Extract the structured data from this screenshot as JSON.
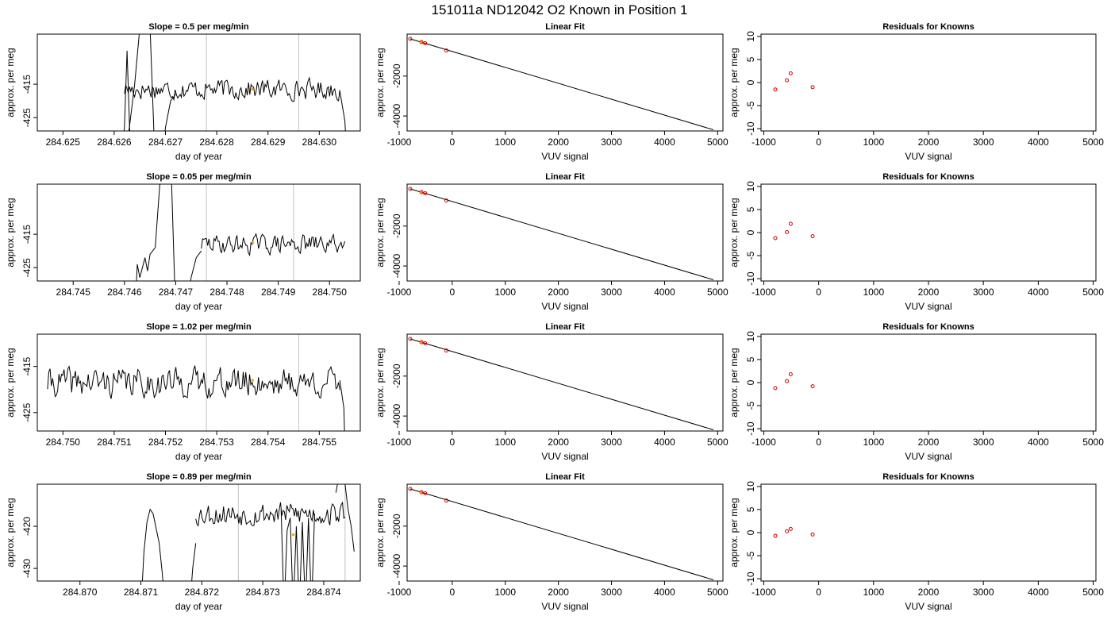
{
  "main_title": "151011a     ND12042   O2 Known in Position  1",
  "chart_data": [
    {
      "row": 0,
      "type": "line",
      "title": "Slope =  0.5  per meg/min",
      "xlabel": "day of year",
      "ylabel": "approx. per meg",
      "xlim": [
        284.6245,
        284.6308
      ],
      "ylim": [
        -429,
        -400
      ],
      "xticks": [
        284.625,
        284.626,
        284.627,
        284.628,
        284.629,
        284.63
      ],
      "xtick_decimals": 3,
      "yticks": [
        -425,
        -415
      ],
      "vlines": [
        284.6278,
        284.6296
      ],
      "mark": {
        "x": 284.6287,
        "y": -416.5
      },
      "trace_start": 284.6262,
      "trace_end": 284.6304,
      "seed": 17,
      "baseline": -416.5,
      "noise": 1.9,
      "excursions": [
        {
          "x": [
            284.6261,
            284.6262,
            284.62625,
            284.6263,
            284.62635
          ],
          "y": [
            -440,
            -428,
            -405,
            -428,
            -440
          ]
        },
        {
          "x": [
            284.6262,
            284.6264,
            284.6265,
            284.6266,
            284.6267,
            284.6268,
            284.62695
          ],
          "y": [
            -440,
            -415,
            -398,
            -388,
            -398,
            -440,
            -440
          ]
        },
        {
          "x": [
            284.6269,
            284.627,
            284.62705,
            284.6271,
            284.6272
          ],
          "y": [
            -440,
            -428,
            -424,
            -420,
            -418
          ]
        },
        {
          "x": [
            284.6304,
            284.6305,
            284.63055
          ],
          "y": [
            -417,
            -426,
            -440
          ]
        }
      ]
    },
    {
      "row": 0,
      "type": "scatter",
      "title": "Linear Fit",
      "xlabel": "VUV signal",
      "ylabel": "approx. per meg",
      "xlim": [
        -850,
        5100
      ],
      "ylim": [
        -4750,
        100
      ],
      "xticks": [
        -1000,
        0,
        1000,
        2000,
        3000,
        4000,
        5000
      ],
      "yticks": [
        -4000,
        -2000
      ],
      "points_x": [
        -790,
        -580,
        -510,
        -110
      ],
      "points_y": [
        -140,
        -300,
        -355,
        -720
      ],
      "mark_x": -585,
      "mark_y": -305,
      "fit_x": [
        -790,
        4920
      ],
      "fit_y": [
        -140,
        -4690
      ]
    },
    {
      "row": 0,
      "type": "scatter",
      "title": "Residuals for Knowns",
      "xlabel": "VUV signal",
      "ylabel": "approx. per meg",
      "xlim": [
        -1050,
        5050
      ],
      "ylim": [
        -10.5,
        10.5
      ],
      "xticks": [
        -1000,
        0,
        1000,
        2000,
        3000,
        4000,
        5000
      ],
      "yticks": [
        -10,
        -5,
        0,
        5,
        10
      ],
      "points_x": [
        -790,
        -580,
        -510,
        -110
      ],
      "points_y": [
        -1.5,
        0.5,
        2.0,
        -1.0
      ]
    },
    {
      "row": 1,
      "type": "line",
      "title": "Slope =  0.05  per meg/min",
      "xlabel": "day of year",
      "ylabel": "approx. per meg",
      "xlim": [
        284.7443,
        284.7506
      ],
      "ylim": [
        -429,
        -400
      ],
      "xticks": [
        284.745,
        284.746,
        284.747,
        284.748,
        284.749,
        284.75
      ],
      "xtick_decimals": 3,
      "yticks": [
        -425,
        -415
      ],
      "vlines": [
        284.7476,
        284.7493
      ],
      "mark": {
        "x": 284.7485,
        "y": -417.5
      },
      "trace_start": 284.7475,
      "trace_end": 284.7503,
      "seed": 29,
      "baseline": -418,
      "noise": 1.8,
      "excursions": [
        {
          "x": [
            284.7462,
            284.74625,
            284.7463,
            284.7464,
            284.74645,
            284.7465,
            284.7466
          ],
          "y": [
            -440,
            -424,
            -428,
            -422,
            -426,
            -421,
            -419
          ]
        },
        {
          "x": [
            284.7466,
            284.7467,
            284.7468,
            284.7469,
            284.747,
            284.74705
          ],
          "y": [
            -419,
            -398,
            -380,
            -390,
            -440,
            -440
          ]
        },
        {
          "x": [
            284.74705,
            284.7472,
            284.7473,
            284.7474,
            284.7475
          ],
          "y": [
            -440,
            -440,
            -428,
            -422,
            -420
          ]
        }
      ]
    },
    {
      "row": 1,
      "type": "scatter",
      "title": "Linear Fit",
      "xlabel": "VUV signal",
      "ylabel": "approx. per meg",
      "xlim": [
        -850,
        5100
      ],
      "ylim": [
        -4750,
        100
      ],
      "xticks": [
        -1000,
        0,
        1000,
        2000,
        3000,
        4000,
        5000
      ],
      "yticks": [
        -4000,
        -2000
      ],
      "points_x": [
        -790,
        -580,
        -510,
        -110
      ],
      "points_y": [
        -140,
        -300,
        -355,
        -720
      ],
      "mark_x": -585,
      "mark_y": -305,
      "fit_x": [
        -790,
        4920
      ],
      "fit_y": [
        -140,
        -4690
      ]
    },
    {
      "row": 1,
      "type": "scatter",
      "title": "Residuals for Knowns",
      "xlabel": "VUV signal",
      "ylabel": "approx. per meg",
      "xlim": [
        -1050,
        5050
      ],
      "ylim": [
        -10.5,
        10.5
      ],
      "xticks": [
        -1000,
        0,
        1000,
        2000,
        3000,
        4000,
        5000
      ],
      "yticks": [
        -10,
        -5,
        0,
        5,
        10
      ],
      "points_x": [
        -790,
        -580,
        -510,
        -110
      ],
      "points_y": [
        -1.2,
        0.1,
        1.9,
        -0.8
      ]
    },
    {
      "row": 2,
      "type": "line",
      "title": "Slope =  1.02  per meg/min",
      "xlabel": "day of year",
      "ylabel": "approx. per meg",
      "xlim": [
        284.7495,
        284.7558
      ],
      "ylim": [
        -429,
        -408
      ],
      "xticks": [
        284.75,
        284.751,
        284.752,
        284.753,
        284.754,
        284.755
      ],
      "xtick_decimals": 3,
      "yticks": [
        -425,
        -415
      ],
      "vlines": [
        284.7528,
        284.7546
      ],
      "mark": {
        "x": 284.7537,
        "y": -418
      },
      "trace_start": 284.7497,
      "trace_end": 284.7554,
      "seed": 41,
      "baseline": -418.5,
      "noise": 2.0,
      "excursions": [
        {
          "x": [
            284.7554,
            284.75548,
            284.7555,
            284.75555
          ],
          "y": [
            -418,
            -424,
            -432,
            -440
          ]
        }
      ]
    },
    {
      "row": 2,
      "type": "scatter",
      "title": "Linear Fit",
      "xlabel": "VUV signal",
      "ylabel": "approx. per meg",
      "xlim": [
        -850,
        5100
      ],
      "ylim": [
        -4750,
        100
      ],
      "xticks": [
        -1000,
        0,
        1000,
        2000,
        3000,
        4000,
        5000
      ],
      "yticks": [
        -4000,
        -2000
      ],
      "points_x": [
        -790,
        -580,
        -510,
        -110
      ],
      "points_y": [
        -140,
        -300,
        -355,
        -720
      ],
      "mark_x": -585,
      "mark_y": -305,
      "fit_x": [
        -790,
        4920
      ],
      "fit_y": [
        -140,
        -4690
      ]
    },
    {
      "row": 2,
      "type": "scatter",
      "title": "Residuals for Knowns",
      "xlabel": "VUV signal",
      "ylabel": "approx. per meg",
      "xlim": [
        -1050,
        5050
      ],
      "ylim": [
        -10.5,
        10.5
      ],
      "xticks": [
        -1000,
        0,
        1000,
        2000,
        3000,
        4000,
        5000
      ],
      "yticks": [
        -10,
        -5,
        0,
        5,
        10
      ],
      "points_x": [
        -790,
        -580,
        -510,
        -110
      ],
      "points_y": [
        -1.2,
        0.3,
        1.8,
        -0.8
      ]
    },
    {
      "row": 3,
      "type": "line",
      "title": "Slope =  0.89  per meg/min",
      "xlabel": "day of year",
      "ylabel": "approx. per meg",
      "xlim": [
        284.8693,
        284.8746
      ],
      "ylim": [
        -433,
        -410
      ],
      "xticks": [
        284.87,
        284.871,
        284.872,
        284.873,
        284.874
      ],
      "xtick_decimals": 3,
      "yticks": [
        -430,
        -420
      ],
      "vlines": [
        284.8726,
        284.87435
      ],
      "mark": {
        "x": 284.8735,
        "y": -422
      },
      "trace_start": 284.8719,
      "trace_end": 284.87435,
      "seed": 53,
      "baseline": -417,
      "noise": 1.8,
      "excursions": [
        {
          "x": [
            284.871,
            284.87105,
            284.8711,
            284.87115,
            284.8712,
            284.8713,
            284.87135,
            284.8714,
            284.87145
          ],
          "y": [
            -440,
            -426,
            -419,
            -416,
            -417,
            -424,
            -431,
            -440,
            -440
          ]
        },
        {
          "x": [
            284.8718,
            284.87185,
            284.8719
          ],
          "y": [
            -440,
            -430,
            -424
          ]
        },
        {
          "x": [
            284.8733,
            284.87335,
            284.8734,
            284.87345,
            284.8735,
            284.87355,
            284.8736,
            284.87365,
            284.8737,
            284.87375,
            284.8738,
            284.87385
          ],
          "y": [
            -416,
            -440,
            -421,
            -418,
            -440,
            -420,
            -440,
            -419,
            -440,
            -418,
            -440,
            -417
          ]
        },
        {
          "x": [
            284.8742,
            284.87425,
            284.8743,
            284.87435,
            284.8744,
            284.87445,
            284.8745
          ],
          "y": [
            -412,
            -408,
            -405,
            -410,
            -416,
            -420,
            -426
          ]
        }
      ]
    },
    {
      "row": 3,
      "type": "scatter",
      "title": "Linear Fit",
      "xlabel": "VUV signal",
      "ylabel": "approx. per meg",
      "xlim": [
        -850,
        5100
      ],
      "ylim": [
        -4750,
        100
      ],
      "xticks": [
        -1000,
        0,
        1000,
        2000,
        3000,
        4000,
        5000
      ],
      "yticks": [
        -4000,
        -2000
      ],
      "points_x": [
        -790,
        -580,
        -510,
        -110
      ],
      "points_y": [
        -140,
        -300,
        -355,
        -720
      ],
      "mark_x": -585,
      "mark_y": -305,
      "fit_x": [
        -790,
        4920
      ],
      "fit_y": [
        -140,
        -4690
      ]
    },
    {
      "row": 3,
      "type": "scatter",
      "title": "Residuals for Knowns",
      "xlabel": "VUV signal",
      "ylabel": "approx. per meg",
      "xlim": [
        -1050,
        5050
      ],
      "ylim": [
        -10.5,
        10.5
      ],
      "xticks": [
        -1000,
        0,
        1000,
        2000,
        3000,
        4000,
        5000
      ],
      "yticks": [
        -10,
        -5,
        0,
        5,
        10
      ],
      "points_x": [
        -790,
        -580,
        -510,
        -110
      ],
      "points_y": [
        -0.7,
        0.3,
        0.8,
        -0.4
      ]
    }
  ],
  "colors": {
    "trace": "#000000",
    "vline": "#cccccc",
    "point": "#cc0000",
    "mark": "#ff9900",
    "fit": "#000000"
  }
}
